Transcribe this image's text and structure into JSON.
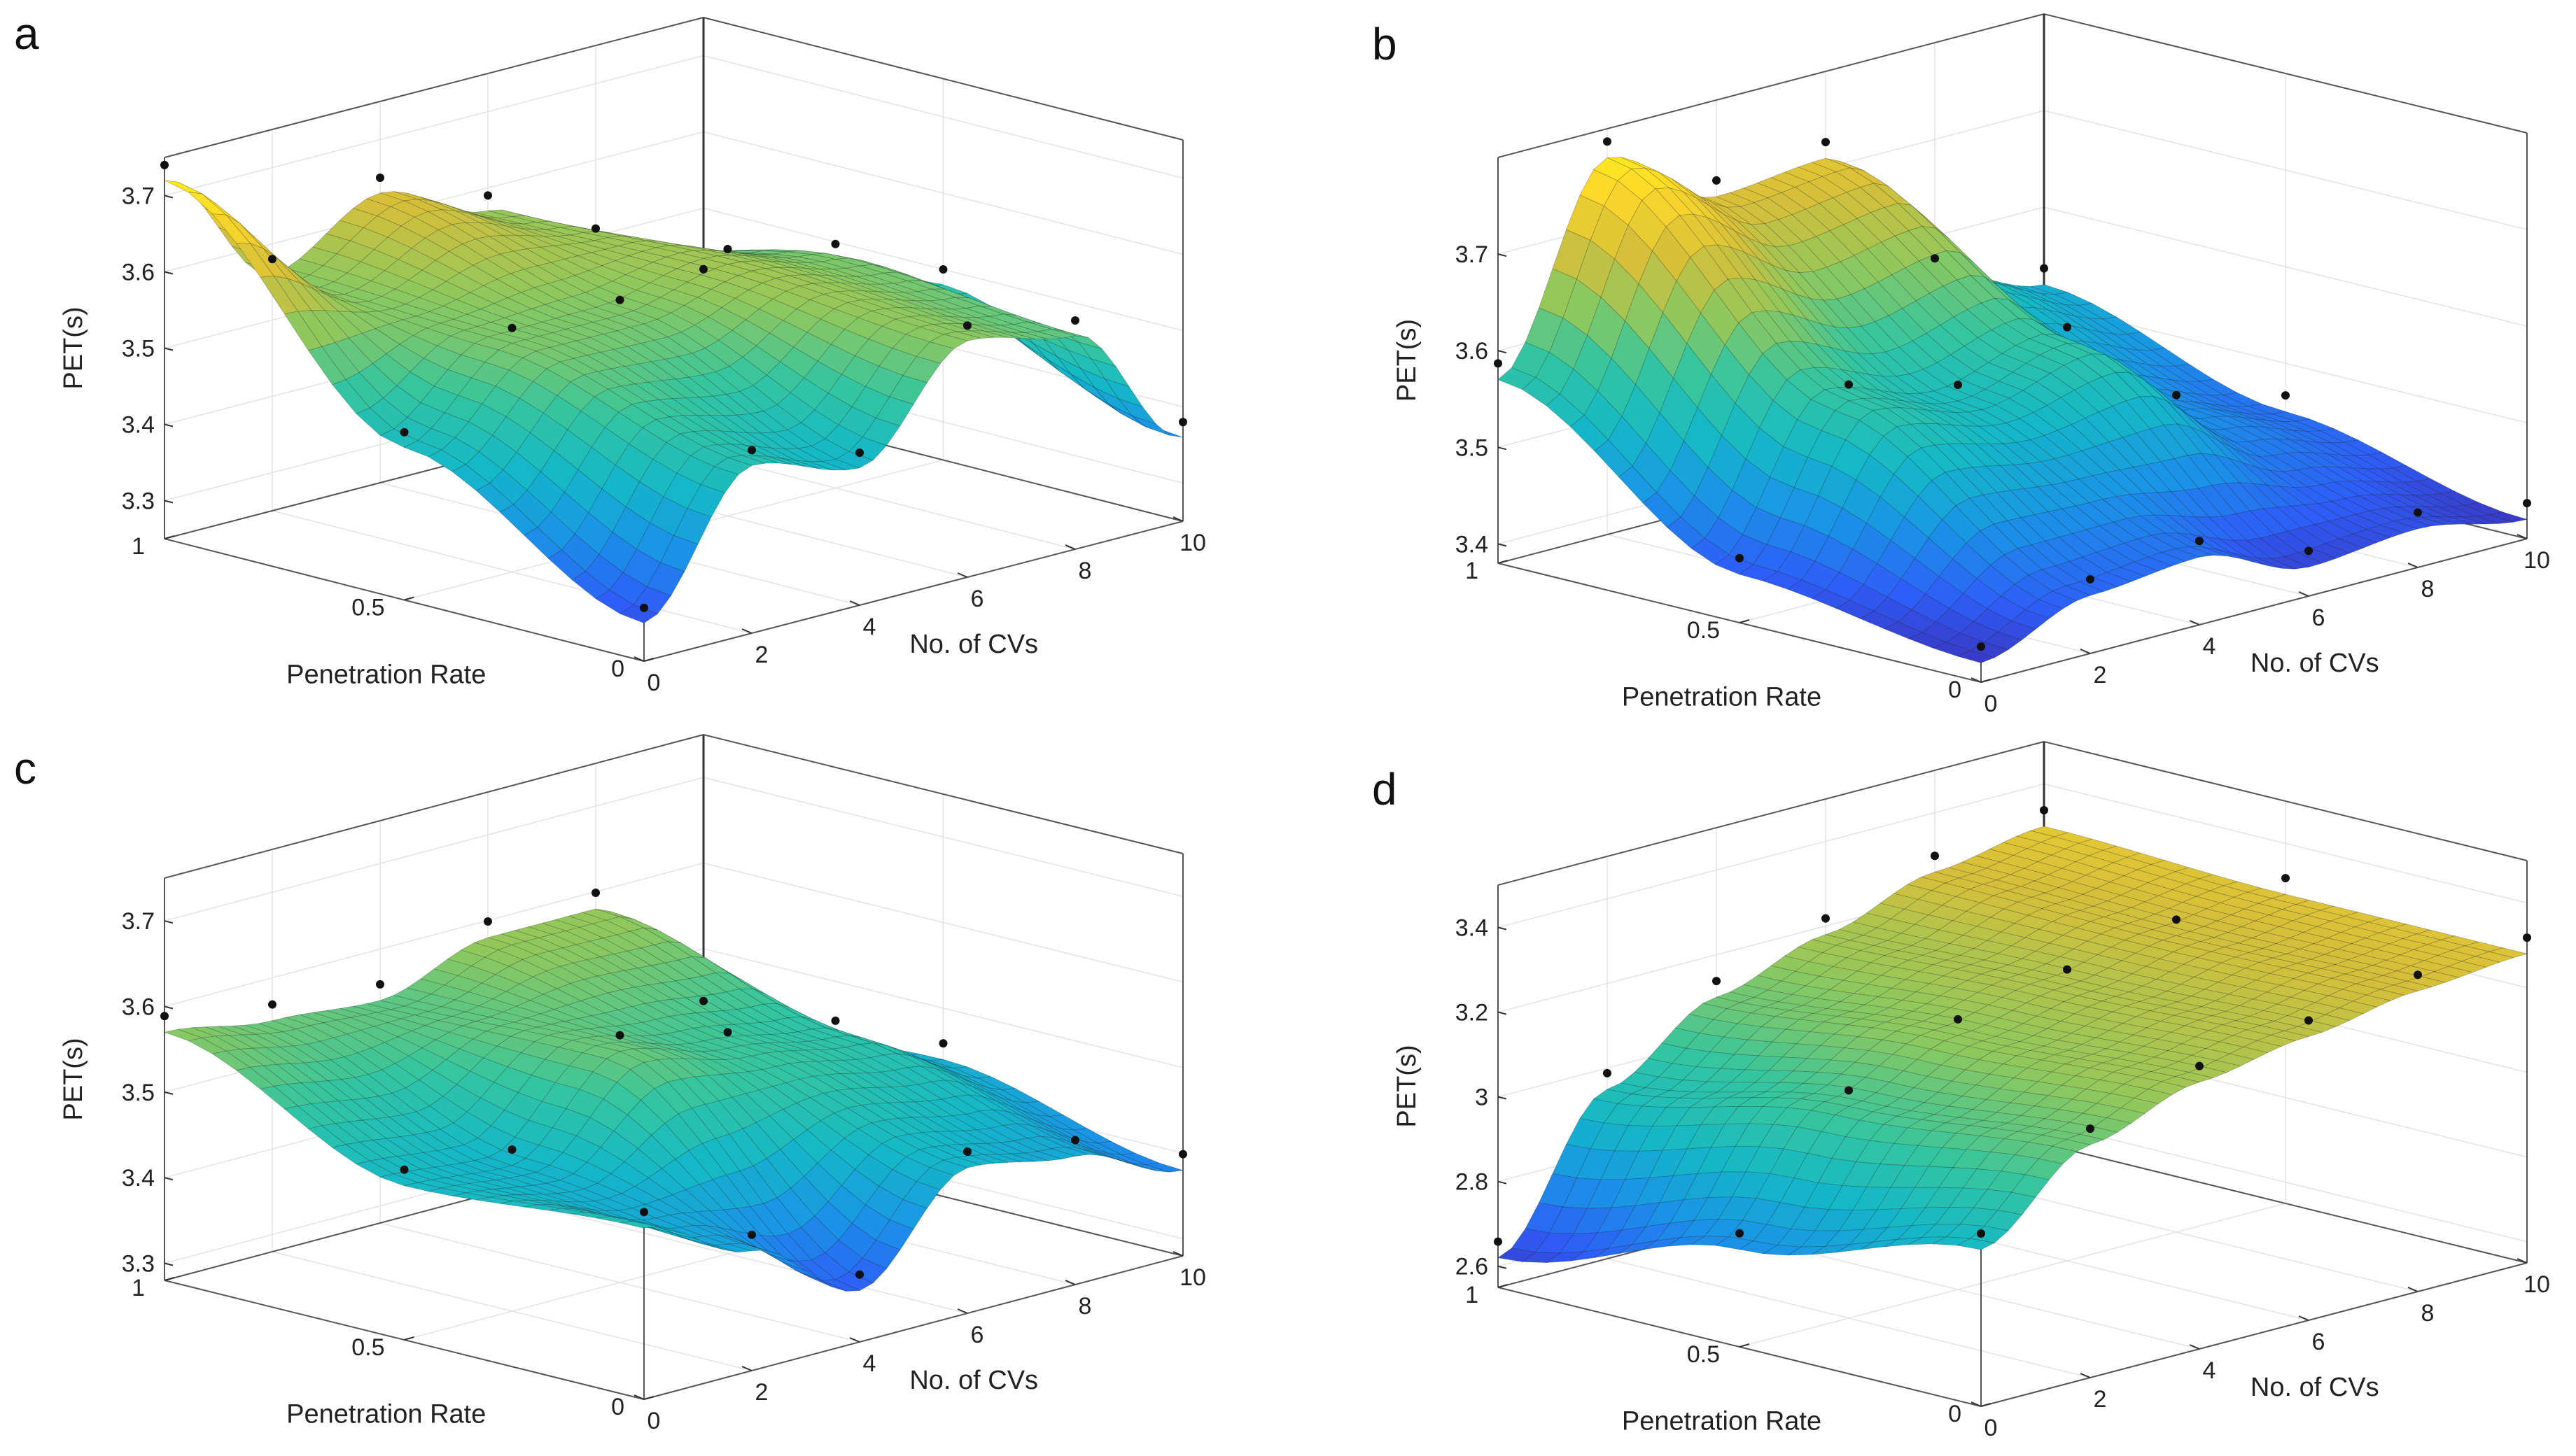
{
  "colormap": [
    "#3e26a8",
    "#2e5df7",
    "#1a94e6",
    "#15b8c7",
    "#35c59f",
    "#8ec85e",
    "#d6bf3a",
    "#fdd92a",
    "#f9fb15"
  ],
  "chart_data": [
    {
      "panel_label": "a",
      "type": "surface3d",
      "xlabel": "No. of CVs",
      "ylabel": "Penetration Rate",
      "zlabel": "PET(s)",
      "xlim": [
        0,
        10
      ],
      "ylim": [
        0,
        1
      ],
      "zlim": [
        3.25,
        3.75
      ],
      "x_ticks": [
        "0",
        "2",
        "4",
        "6",
        "8",
        "10"
      ],
      "y_ticks": [
        "0",
        "0.5",
        "1"
      ],
      "z_ticks": [
        "3.3",
        "3.4",
        "3.5",
        "3.6",
        "3.7"
      ],
      "grid": true,
      "points": [
        {
          "x": 0,
          "y": 1,
          "z": 3.72
        },
        {
          "x": 2,
          "y": 1,
          "z": 3.56
        },
        {
          "x": 4,
          "y": 1,
          "z": 3.63
        },
        {
          "x": 6,
          "y": 1,
          "z": 3.57
        },
        {
          "x": 8,
          "y": 1,
          "z": 3.49
        },
        {
          "x": 10,
          "y": 1,
          "z": 3.4
        },
        {
          "x": 0,
          "y": 0.5,
          "z": 3.45
        },
        {
          "x": 2,
          "y": 0.5,
          "z": 3.55
        },
        {
          "x": 4,
          "y": 0.5,
          "z": 3.55
        },
        {
          "x": 6,
          "y": 0.5,
          "z": 3.58
        },
        {
          "x": 8,
          "y": 0.5,
          "z": 3.55
        },
        {
          "x": 10,
          "y": 0.5,
          "z": 3.48
        },
        {
          "x": 0,
          "y": 0,
          "z": 3.3
        },
        {
          "x": 2,
          "y": 0,
          "z": 3.47
        },
        {
          "x": 4,
          "y": 0,
          "z": 3.43
        },
        {
          "x": 6,
          "y": 0,
          "z": 3.56
        },
        {
          "x": 8,
          "y": 0,
          "z": 3.53
        },
        {
          "x": 10,
          "y": 0,
          "z": 3.36
        }
      ]
    },
    {
      "panel_label": "b",
      "type": "surface3d",
      "xlabel": "No. of CVs",
      "ylabel": "Penetration Rate",
      "zlabel": "PET(s)",
      "xlim": [
        0,
        10
      ],
      "ylim": [
        0,
        1
      ],
      "zlim": [
        3.38,
        3.8
      ],
      "x_ticks": [
        "0",
        "2",
        "4",
        "6",
        "8",
        "10"
      ],
      "y_ticks": [
        "0",
        "0.5",
        "1"
      ],
      "z_ticks": [
        "3.4",
        "3.5",
        "3.6",
        "3.7"
      ],
      "grid": true,
      "points": [
        {
          "x": 0,
          "y": 1,
          "z": 3.57
        },
        {
          "x": 2,
          "y": 1,
          "z": 3.77
        },
        {
          "x": 4,
          "y": 1,
          "z": 3.7
        },
        {
          "x": 6,
          "y": 1,
          "z": 3.71
        },
        {
          "x": 8,
          "y": 1,
          "z": 3.56
        },
        {
          "x": 10,
          "y": 1,
          "z": 3.52
        },
        {
          "x": 0,
          "y": 0.5,
          "z": 3.43
        },
        {
          "x": 2,
          "y": 0.5,
          "z": 3.58
        },
        {
          "x": 4,
          "y": 0.5,
          "z": 3.55
        },
        {
          "x": 6,
          "y": 0.5,
          "z": 3.58
        },
        {
          "x": 8,
          "y": 0.5,
          "z": 3.48
        },
        {
          "x": 10,
          "y": 0.5,
          "z": 3.45
        },
        {
          "x": 0,
          "y": 0,
          "z": 3.4
        },
        {
          "x": 2,
          "y": 0,
          "z": 3.44
        },
        {
          "x": 4,
          "y": 0,
          "z": 3.45
        },
        {
          "x": 6,
          "y": 0,
          "z": 3.41
        },
        {
          "x": 8,
          "y": 0,
          "z": 3.42
        },
        {
          "x": 10,
          "y": 0,
          "z": 3.4
        }
      ]
    },
    {
      "panel_label": "c",
      "type": "surface3d",
      "xlabel": "No. of CVs",
      "ylabel": "Penetration Rate",
      "zlabel": "PET(s)",
      "xlim": [
        0,
        10
      ],
      "ylim": [
        0,
        1
      ],
      "zlim": [
        3.28,
        3.75
      ],
      "x_ticks": [
        "0",
        "2",
        "4",
        "6",
        "8",
        "10"
      ],
      "y_ticks": [
        "0",
        "0.5",
        "1"
      ],
      "z_ticks": [
        "3.3",
        "3.4",
        "3.5",
        "3.6",
        "3.7"
      ],
      "grid": true,
      "points": [
        {
          "x": 0,
          "y": 1,
          "z": 3.57
        },
        {
          "x": 2,
          "y": 1,
          "z": 3.55
        },
        {
          "x": 4,
          "y": 1,
          "z": 3.54
        },
        {
          "x": 6,
          "y": 1,
          "z": 3.58
        },
        {
          "x": 8,
          "y": 1,
          "z": 3.58
        },
        {
          "x": 10,
          "y": 1,
          "z": 3.42
        },
        {
          "x": 0,
          "y": 0.5,
          "z": 3.46
        },
        {
          "x": 2,
          "y": 0.5,
          "z": 3.45
        },
        {
          "x": 4,
          "y": 0.5,
          "z": 3.55
        },
        {
          "x": 6,
          "y": 0.5,
          "z": 3.52
        },
        {
          "x": 8,
          "y": 0.5,
          "z": 3.5
        },
        {
          "x": 10,
          "y": 0.5,
          "z": 3.44
        },
        {
          "x": 0,
          "y": 0,
          "z": 3.48
        },
        {
          "x": 2,
          "y": 0,
          "z": 3.42
        },
        {
          "x": 4,
          "y": 0,
          "z": 3.34
        },
        {
          "x": 6,
          "y": 0,
          "z": 3.45
        },
        {
          "x": 8,
          "y": 0,
          "z": 3.43
        },
        {
          "x": 10,
          "y": 0,
          "z": 3.38
        }
      ]
    },
    {
      "panel_label": "d",
      "type": "surface3d",
      "xlabel": "No. of CVs",
      "ylabel": "Penetration Rate",
      "zlabel": "PET(s)",
      "xlim": [
        0,
        10
      ],
      "ylim": [
        0,
        1
      ],
      "zlim": [
        2.55,
        3.5
      ],
      "x_ticks": [
        "0",
        "2",
        "4",
        "6",
        "8",
        "10"
      ],
      "y_ticks": [
        "0",
        "0.5",
        "1"
      ],
      "z_ticks": [
        "2.6",
        "2.8",
        "3",
        "3.2",
        "3.4"
      ],
      "grid": true,
      "points": [
        {
          "x": 0,
          "y": 1,
          "z": 2.62
        },
        {
          "x": 2,
          "y": 1,
          "z": 2.95
        },
        {
          "x": 4,
          "y": 1,
          "z": 3.1
        },
        {
          "x": 6,
          "y": 1,
          "z": 3.18
        },
        {
          "x": 8,
          "y": 1,
          "z": 3.26
        },
        {
          "x": 10,
          "y": 1,
          "z": 3.3
        },
        {
          "x": 0,
          "y": 0.5,
          "z": 2.78
        },
        {
          "x": 2,
          "y": 0.5,
          "z": 3.05
        },
        {
          "x": 4,
          "y": 0.5,
          "z": 3.15
        },
        {
          "x": 6,
          "y": 0.5,
          "z": 3.2
        },
        {
          "x": 8,
          "y": 0.5,
          "z": 3.25
        },
        {
          "x": 10,
          "y": 0.5,
          "z": 3.28
        },
        {
          "x": 0,
          "y": 0,
          "z": 2.92
        },
        {
          "x": 2,
          "y": 0,
          "z": 3.1
        },
        {
          "x": 4,
          "y": 0,
          "z": 3.18
        },
        {
          "x": 6,
          "y": 0,
          "z": 3.22
        },
        {
          "x": 8,
          "y": 0,
          "z": 3.26
        },
        {
          "x": 10,
          "y": 0,
          "z": 3.28
        }
      ]
    }
  ]
}
